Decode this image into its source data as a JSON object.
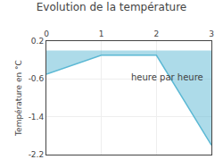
{
  "chart_data": {
    "type": "area",
    "title": "Evolution de la température",
    "ylabel": "Température en °C",
    "annotations": [
      "heure par heure"
    ],
    "x": [
      0,
      1,
      2,
      3
    ],
    "values": [
      -0.5,
      -0.1,
      -0.1,
      -2.0
    ],
    "color": "#5bb8d4",
    "xlim": [
      0,
      3
    ],
    "xticks": [
      0,
      1,
      2,
      3
    ],
    "ylim": [
      -2.2,
      0.2
    ],
    "yticks": [
      0.2,
      -0.6,
      -1.4,
      -2.2
    ],
    "grid": true
  }
}
